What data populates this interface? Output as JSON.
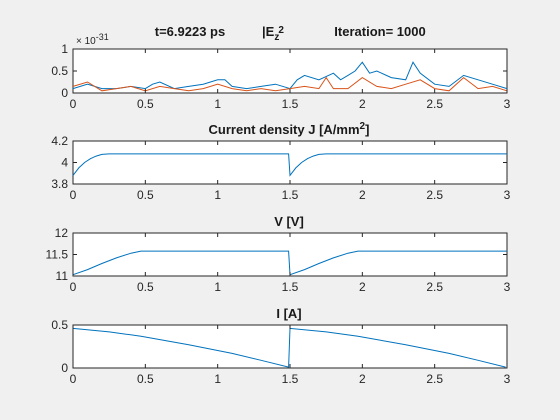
{
  "figure": {
    "background": "#f0f0f0",
    "series_colors": [
      "#0072bd",
      "#d95319"
    ]
  },
  "chart_data": [
    {
      "type": "line",
      "title_parts": {
        "time": "t=6.9223 ps",
        "field": "|E",
        "sub": "z",
        "sup": "2",
        "iteration": "Iteration= 1000"
      },
      "xlim": [
        0,
        3
      ],
      "ylim": [
        0,
        1
      ],
      "y_exponent": "-31",
      "xticks": [
        "0",
        "0.5",
        "1",
        "1.5",
        "2",
        "2.5",
        "3"
      ],
      "yticks": [
        "0",
        "0.5",
        "1"
      ],
      "grid": false,
      "series": [
        {
          "color": "#0072bd",
          "x": [
            0,
            0.1,
            0.2,
            0.3,
            0.4,
            0.5,
            0.55,
            0.6,
            0.7,
            0.8,
            0.9,
            1.0,
            1.05,
            1.1,
            1.2,
            1.3,
            1.4,
            1.5,
            1.55,
            1.6,
            1.7,
            1.8,
            1.85,
            1.9,
            1.95,
            2.0,
            2.05,
            2.1,
            2.2,
            2.3,
            2.35,
            2.4,
            2.5,
            2.6,
            2.7,
            2.8,
            2.9,
            3.0
          ],
          "y": [
            0.1,
            0.2,
            0.1,
            0.1,
            0.15,
            0.1,
            0.2,
            0.25,
            0.1,
            0.15,
            0.2,
            0.3,
            0.3,
            0.15,
            0.1,
            0.15,
            0.2,
            0.1,
            0.3,
            0.4,
            0.3,
            0.45,
            0.3,
            0.4,
            0.5,
            0.7,
            0.45,
            0.5,
            0.35,
            0.3,
            0.7,
            0.45,
            0.2,
            0.15,
            0.4,
            0.3,
            0.2,
            0.1
          ]
        },
        {
          "color": "#d95319",
          "x": [
            0,
            0.1,
            0.2,
            0.3,
            0.4,
            0.5,
            0.6,
            0.7,
            0.8,
            0.9,
            1.0,
            1.1,
            1.2,
            1.3,
            1.4,
            1.5,
            1.6,
            1.7,
            1.75,
            1.8,
            1.9,
            2.0,
            2.1,
            2.2,
            2.3,
            2.4,
            2.5,
            2.6,
            2.7,
            2.8,
            2.9,
            3.0
          ],
          "y": [
            0.15,
            0.25,
            0.05,
            0.1,
            0.15,
            0.05,
            0.15,
            0.1,
            0.05,
            0.1,
            0.2,
            0.1,
            0.05,
            0.1,
            0.05,
            0.1,
            0.15,
            0.1,
            0.35,
            0.1,
            0.1,
            0.35,
            0.15,
            0.1,
            0.2,
            0.3,
            0.1,
            0.05,
            0.35,
            0.1,
            0.15,
            0.05
          ]
        }
      ]
    },
    {
      "type": "line",
      "title": "Current density J [A/mm",
      "title_sup": "2",
      "title_end": "]",
      "xlim": [
        0,
        3
      ],
      "ylim": [
        3.8,
        4.2
      ],
      "xticks": [
        "0",
        "0.5",
        "1",
        "1.5",
        "2",
        "2.5",
        "3"
      ],
      "yticks": [
        "3.8",
        "4",
        "4.2"
      ],
      "grid": false,
      "series": [
        {
          "color": "#0072bd",
          "x": [
            0,
            0.04,
            0.08,
            0.12,
            0.16,
            0.2,
            0.25,
            1.49,
            1.5,
            1.54,
            1.58,
            1.62,
            1.66,
            1.7,
            1.75,
            3.0
          ],
          "y": [
            3.88,
            3.95,
            4.0,
            4.035,
            4.06,
            4.075,
            4.08,
            4.08,
            3.88,
            3.95,
            4.0,
            4.035,
            4.06,
            4.075,
            4.08,
            4.08
          ]
        }
      ]
    },
    {
      "type": "line",
      "title": "V [V]",
      "xlim": [
        0,
        3
      ],
      "ylim": [
        11,
        12
      ],
      "xticks": [
        "0",
        "0.5",
        "1",
        "1.5",
        "2",
        "2.5",
        "3"
      ],
      "yticks": [
        "11",
        "11.5",
        "12"
      ],
      "grid": false,
      "series": [
        {
          "color": "#0072bd",
          "x": [
            0,
            0.1,
            0.2,
            0.3,
            0.4,
            0.47,
            1.49,
            1.5,
            1.6,
            1.7,
            1.8,
            1.9,
            1.97,
            3.0
          ],
          "y": [
            11.03,
            11.15,
            11.29,
            11.42,
            11.53,
            11.58,
            11.58,
            11.03,
            11.15,
            11.29,
            11.42,
            11.53,
            11.58,
            11.58
          ]
        }
      ]
    },
    {
      "type": "line",
      "title": "I [A]",
      "xlim": [
        0,
        3
      ],
      "ylim": [
        0,
        0.5
      ],
      "xticks": [
        "0",
        "0.5",
        "1",
        "1.5",
        "2",
        "2.5",
        "3"
      ],
      "yticks": [
        "0",
        "0.5"
      ],
      "grid": false,
      "series": [
        {
          "color": "#0072bd",
          "x": [
            0,
            0.25,
            0.47,
            0.8,
            1.1,
            1.3,
            1.49,
            1.5,
            1.75,
            1.97,
            2.3,
            2.6,
            2.8,
            2.99
          ],
          "y": [
            0.46,
            0.42,
            0.37,
            0.27,
            0.17,
            0.09,
            0.01,
            0.46,
            0.42,
            0.37,
            0.27,
            0.17,
            0.09,
            0.01
          ]
        }
      ]
    }
  ]
}
